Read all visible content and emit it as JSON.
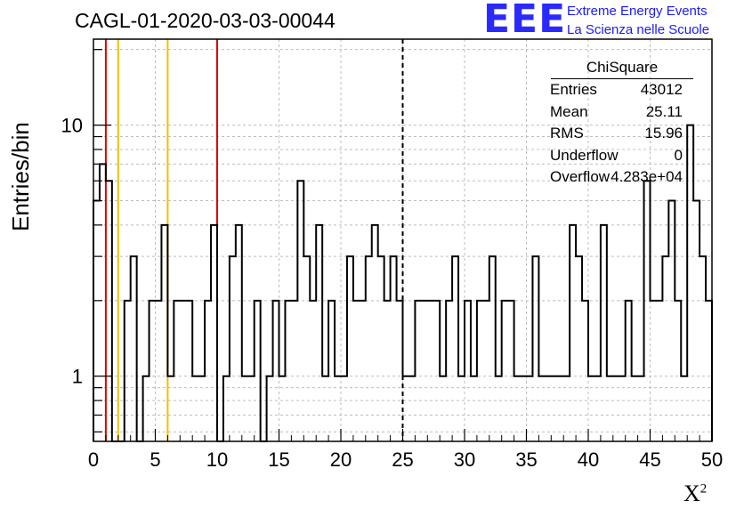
{
  "title": "CAGL-01-2020-03-03-00044",
  "logo": {
    "letters": "EEE",
    "line1": "Extreme Energy Events",
    "line2": "La Scienza nelle Scuole"
  },
  "stats": {
    "title": "ChiSquare",
    "rows": [
      {
        "label": "Entries",
        "value": "43012"
      },
      {
        "label": "Mean",
        "value": "25.11"
      },
      {
        "label": "RMS",
        "value": "15.96"
      },
      {
        "label": "Underflow",
        "value": "0"
      },
      {
        "label": "Overflow",
        "value": "4.283e+04"
      }
    ]
  },
  "colors": {
    "red_line": "#dd0000",
    "yellow_line": "#f0c000",
    "histogram": "#000000",
    "grid": "#bdbdbd"
  },
  "chart_data": {
    "type": "histogram",
    "xlabel": "X",
    "xlabel_superscript": "2",
    "ylabel": "Entries/bin",
    "xlim": [
      0,
      50
    ],
    "ylim": [
      0.55,
      22
    ],
    "y_log_scale": true,
    "grid": true,
    "x_ticks": [
      0,
      5,
      10,
      15,
      20,
      25,
      30,
      35,
      40,
      45,
      50
    ],
    "x_tick_labels": [
      "0",
      "5",
      "10",
      "15",
      "20",
      "25",
      "30",
      "35",
      "40",
      "45",
      "50"
    ],
    "y_ticks": [
      1,
      10
    ],
    "y_tick_labels": [
      "1",
      "10"
    ],
    "bin_width": 0.5,
    "bin_start": 0,
    "values": [
      5,
      7,
      6,
      0,
      0,
      2,
      3,
      0,
      1,
      2,
      2,
      4,
      1,
      2,
      2,
      2,
      1,
      1,
      2,
      4,
      0,
      1,
      3,
      4,
      1,
      1,
      2,
      0,
      1,
      2,
      1,
      2,
      2,
      6,
      3,
      2,
      4,
      1,
      2,
      1,
      1,
      3,
      2,
      2,
      3,
      4,
      3,
      2,
      3,
      2,
      1,
      1,
      2,
      2,
      2,
      2,
      1,
      2,
      3,
      1,
      2,
      1,
      2,
      2,
      3,
      1,
      2,
      2,
      1,
      1,
      1,
      3,
      1,
      1,
      1,
      1,
      1,
      4,
      3,
      2,
      1,
      1,
      4,
      1,
      1,
      1,
      2,
      1,
      1,
      6,
      2,
      2,
      3,
      5,
      2,
      1,
      10,
      5,
      3,
      2
    ],
    "vertical_lines": [
      {
        "x": 1,
        "color": "red"
      },
      {
        "x": 2,
        "color": "yellow"
      },
      {
        "x": 6,
        "color": "yellow"
      },
      {
        "x": 10,
        "color": "red"
      },
      {
        "x": 25,
        "color": "black",
        "style": "dashed"
      }
    ]
  }
}
